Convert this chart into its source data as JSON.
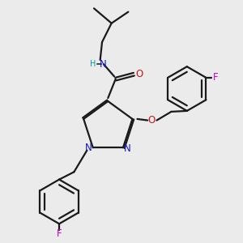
{
  "bg_color": "#ebebeb",
  "bond_color": "#1a1a1a",
  "bond_width": 1.6,
  "atom_colors": {
    "N": "#1414cc",
    "O": "#cc1414",
    "F": "#cc00cc",
    "H": "#009999"
  },
  "font_size_atom": 8.5,
  "font_size_H": 7.0
}
